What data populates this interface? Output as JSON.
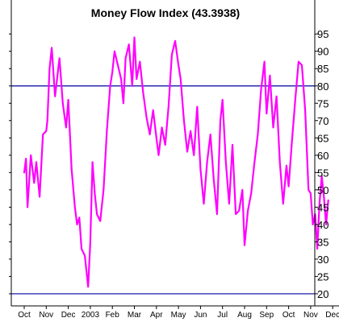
{
  "chart_data": {
    "type": "line",
    "title": "Money Flow Index (43.3938)",
    "x_ticks": [
      "Oct",
      "Nov",
      "Dec",
      "2003",
      "Feb",
      "Mar",
      "Apr",
      "May",
      "Jun",
      "Jul",
      "Aug",
      "Sep",
      "Oct",
      "Nov",
      "Dec"
    ],
    "y_ticks": [
      20,
      25,
      30,
      35,
      40,
      45,
      50,
      55,
      60,
      65,
      70,
      75,
      80,
      85,
      90,
      95
    ],
    "ylim": [
      16.5,
      99
    ],
    "x_range": [
      0,
      14.5
    ],
    "grid": false,
    "reference_lines": [
      80,
      20
    ],
    "series": [
      {
        "x": [
          0.0,
          0.08,
          0.15,
          0.3,
          0.45,
          0.55,
          0.7,
          0.85,
          1.0,
          1.05,
          1.15,
          1.25,
          1.4,
          1.6,
          1.75,
          1.9,
          2.0,
          2.15,
          2.3,
          2.4,
          2.5,
          2.6,
          2.75,
          2.9,
          3.0,
          3.1,
          3.2,
          3.3,
          3.45,
          3.6,
          3.75,
          3.9,
          4.0,
          4.1,
          4.25,
          4.4,
          4.5,
          4.6,
          4.75,
          4.9,
          5.0,
          5.1,
          5.25,
          5.4,
          5.55,
          5.7,
          5.85,
          6.0,
          6.1,
          6.25,
          6.4,
          6.55,
          6.7,
          6.85,
          7.0,
          7.1,
          7.25,
          7.4,
          7.55,
          7.7,
          7.85,
          8.0,
          8.15,
          8.3,
          8.45,
          8.6,
          8.75,
          8.9,
          9.0,
          9.15,
          9.3,
          9.45,
          9.6,
          9.75,
          9.9,
          10.0,
          10.15,
          10.3,
          10.45,
          10.6,
          10.75,
          10.9,
          11.0,
          11.15,
          11.3,
          11.45,
          11.6,
          11.75,
          11.9,
          12.0,
          12.15,
          12.3,
          12.45,
          12.6,
          12.75,
          12.9,
          13.0,
          13.1,
          13.2,
          13.3,
          13.4,
          13.5,
          13.6,
          13.7,
          13.8
        ],
        "y": [
          55,
          59,
          45,
          60,
          52,
          58,
          48,
          66,
          67,
          70,
          85,
          91,
          77,
          88,
          75,
          68,
          76,
          56,
          45,
          40,
          42,
          33,
          31,
          22,
          35,
          58,
          49,
          43,
          41,
          50,
          67,
          80,
          84,
          90,
          86,
          82,
          75,
          88,
          92,
          80,
          94,
          82,
          87,
          78,
          71,
          66,
          73,
          65,
          60,
          68,
          63,
          74,
          89,
          93,
          86,
          82,
          70,
          61,
          67,
          60,
          74,
          56,
          46,
          58,
          66,
          53,
          43,
          70,
          76,
          58,
          46,
          63,
          43,
          44,
          50,
          34,
          44,
          49,
          58,
          66,
          79,
          87,
          72,
          83,
          68,
          77,
          58,
          46,
          57,
          51,
          64,
          76,
          87,
          86,
          73,
          50,
          49,
          40,
          43,
          33,
          46,
          54,
          48,
          40,
          47
        ]
      }
    ],
    "colors": {
      "series": "#ff00ff",
      "reference_line": "#0000a0",
      "axis": "#000000",
      "background": "#ffffff"
    }
  }
}
